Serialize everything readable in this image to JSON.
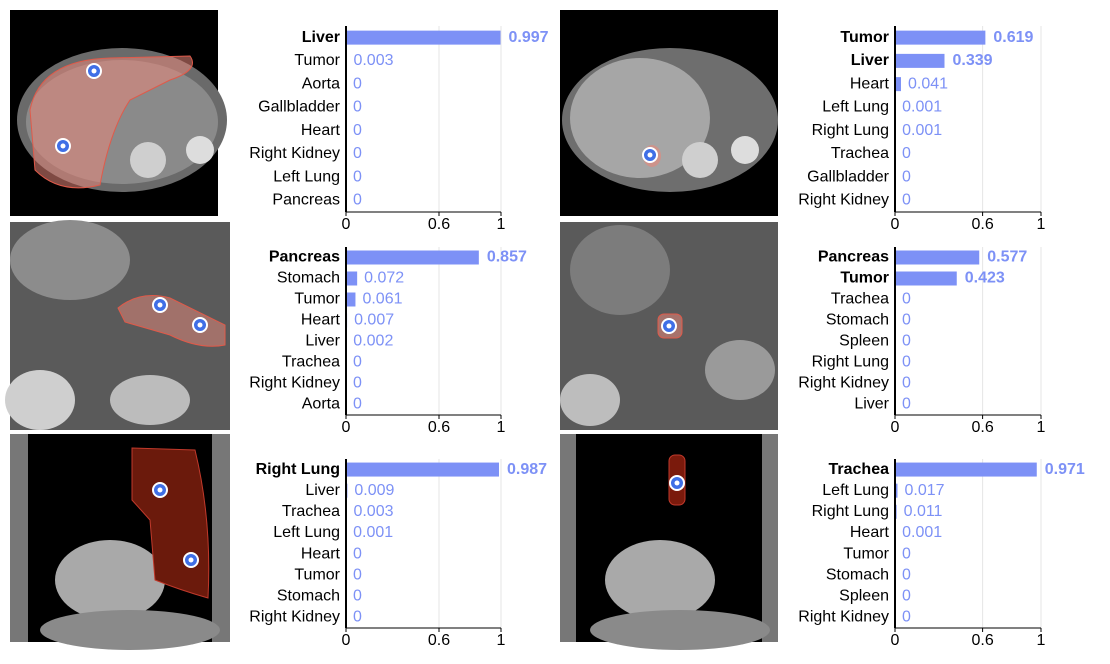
{
  "chart_data": [
    {
      "type": "bar",
      "orientation": "horizontal",
      "categories": [
        "Liver",
        "Tumor",
        "Aorta",
        "Gallbladder",
        "Heart",
        "Right Kidney",
        "Left Lung",
        "Pancreas"
      ],
      "values": [
        0.997,
        0.003,
        0,
        0,
        0,
        0,
        0,
        0
      ],
      "color": "#7d91f6",
      "xlim": [
        0,
        1
      ],
      "xticks": [
        0,
        0.6,
        1
      ],
      "bold_count": 1,
      "grid": true
    },
    {
      "type": "bar",
      "orientation": "horizontal",
      "categories": [
        "Tumor",
        "Liver",
        "Heart",
        "Left Lung",
        "Right Lung",
        "Trachea",
        "Gallbladder",
        "Right Kidney"
      ],
      "values": [
        0.619,
        0.339,
        0.041,
        0.001,
        0.001,
        0,
        0,
        0
      ],
      "color": "#7d91f6",
      "xlim": [
        0,
        1
      ],
      "xticks": [
        0,
        0.6,
        1
      ],
      "bold_count": 2,
      "grid": true
    },
    {
      "type": "bar",
      "orientation": "horizontal",
      "categories": [
        "Pancreas",
        "Stomach",
        "Tumor",
        "Heart",
        "Liver",
        "Trachea",
        "Right Kidney",
        "Aorta"
      ],
      "values": [
        0.857,
        0.072,
        0.061,
        0.007,
        0.002,
        0,
        0,
        0
      ],
      "color": "#7d91f6",
      "xlim": [
        0,
        1
      ],
      "xticks": [
        0,
        0.6,
        1
      ],
      "bold_count": 1,
      "grid": true
    },
    {
      "type": "bar",
      "orientation": "horizontal",
      "categories": [
        "Pancreas",
        "Tumor",
        "Trachea",
        "Stomach",
        "Spleen",
        "Right Lung",
        "Right Kidney",
        "Liver"
      ],
      "values": [
        0.577,
        0.423,
        0,
        0,
        0,
        0,
        0,
        0
      ],
      "color": "#7d91f6",
      "xlim": [
        0,
        1
      ],
      "xticks": [
        0,
        0.6,
        1
      ],
      "bold_count": 2,
      "grid": true
    },
    {
      "type": "bar",
      "orientation": "horizontal",
      "categories": [
        "Right Lung",
        "Liver",
        "Trachea",
        "Left Lung",
        "Heart",
        "Tumor",
        "Stomach",
        "Right Kidney"
      ],
      "values": [
        0.987,
        0.009,
        0.003,
        0.001,
        0,
        0,
        0,
        0
      ],
      "color": "#7d91f6",
      "xlim": [
        0,
        1
      ],
      "xticks": [
        0,
        0.6,
        1
      ],
      "bold_count": 1,
      "grid": true
    },
    {
      "type": "bar",
      "orientation": "horizontal",
      "categories": [
        "Trachea",
        "Left Lung",
        "Right Lung",
        "Heart",
        "Tumor",
        "Stomach",
        "Spleen",
        "Right Kidney"
      ],
      "values": [
        0.971,
        0.017,
        0.011,
        0.001,
        0,
        0,
        0,
        0
      ],
      "color": "#7d91f6",
      "xlim": [
        0,
        1
      ],
      "xticks": [
        0,
        0.6,
        1
      ],
      "bold_count": 1,
      "grid": true
    }
  ]
}
